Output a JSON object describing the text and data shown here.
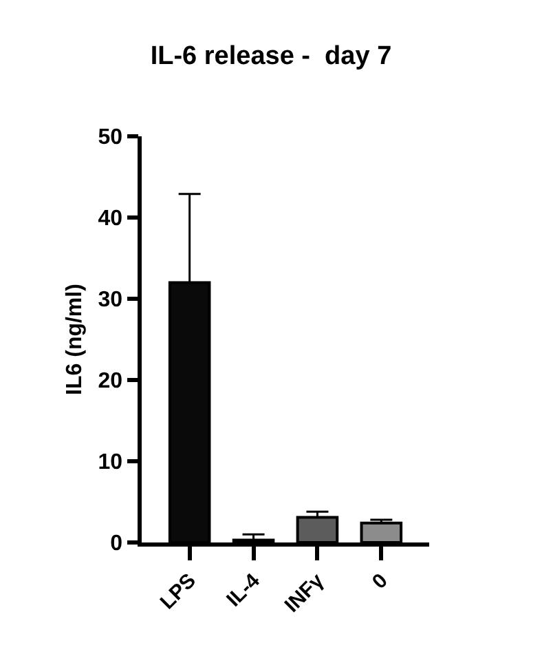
{
  "chart_data": {
    "type": "bar",
    "title": "IL-6 release -  day 7",
    "ylabel": "IL6 (ng/ml)",
    "categories": [
      "LPS",
      "IL-4",
      "INFγ",
      "0"
    ],
    "values": [
      32.0,
      0.3,
      3.1,
      2.4
    ],
    "colors": [
      "#0a0a0a",
      "#1a1a1a",
      "#5c5c5c",
      "#8c8c8c"
    ],
    "errors": [
      [
        32.0,
        42.9
      ],
      [
        0.3,
        1.0
      ],
      [
        3.1,
        3.8
      ],
      [
        2.4,
        2.8
      ]
    ],
    "ylim": [
      0,
      50
    ],
    "yticks": [
      0,
      10,
      20,
      30,
      40,
      50
    ],
    "grid": false
  }
}
